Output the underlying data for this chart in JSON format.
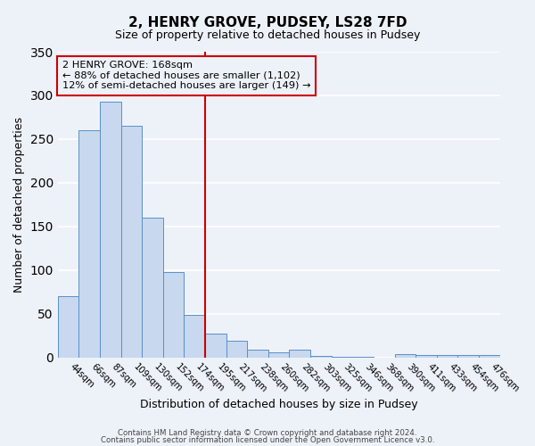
{
  "title": "2, HENRY GROVE, PUDSEY, LS28 7FD",
  "subtitle": "Size of property relative to detached houses in Pudsey",
  "xlabel": "Distribution of detached houses by size in Pudsey",
  "ylabel": "Number of detached properties",
  "categories": [
    "44sqm",
    "66sqm",
    "87sqm",
    "109sqm",
    "130sqm",
    "152sqm",
    "174sqm",
    "195sqm",
    "217sqm",
    "238sqm",
    "260sqm",
    "282sqm",
    "303sqm",
    "325sqm",
    "346sqm",
    "368sqm",
    "390sqm",
    "411sqm",
    "433sqm",
    "454sqm",
    "476sqm"
  ],
  "values": [
    70,
    260,
    293,
    265,
    160,
    98,
    49,
    28,
    19,
    9,
    6,
    9,
    2,
    1,
    1,
    0,
    4,
    3,
    3,
    3,
    3
  ],
  "bar_color": "#c8d8ee",
  "bar_edge_color": "#5b8fc9",
  "ylim": [
    0,
    350
  ],
  "yticks": [
    0,
    50,
    100,
    150,
    200,
    250,
    300,
    350
  ],
  "vline_x_index": 6,
  "vline_color": "#cc0000",
  "annotation_title": "2 HENRY GROVE: 168sqm",
  "annotation_line1": "← 88% of detached houses are smaller (1,102)",
  "annotation_line2": "12% of semi-detached houses are larger (149) →",
  "annotation_box_color": "#cc0000",
  "background_color": "#edf2f9",
  "grid_color": "#ffffff",
  "footer1": "Contains HM Land Registry data © Crown copyright and database right 2024.",
  "footer2": "Contains public sector information licensed under the Open Government Licence v3.0."
}
